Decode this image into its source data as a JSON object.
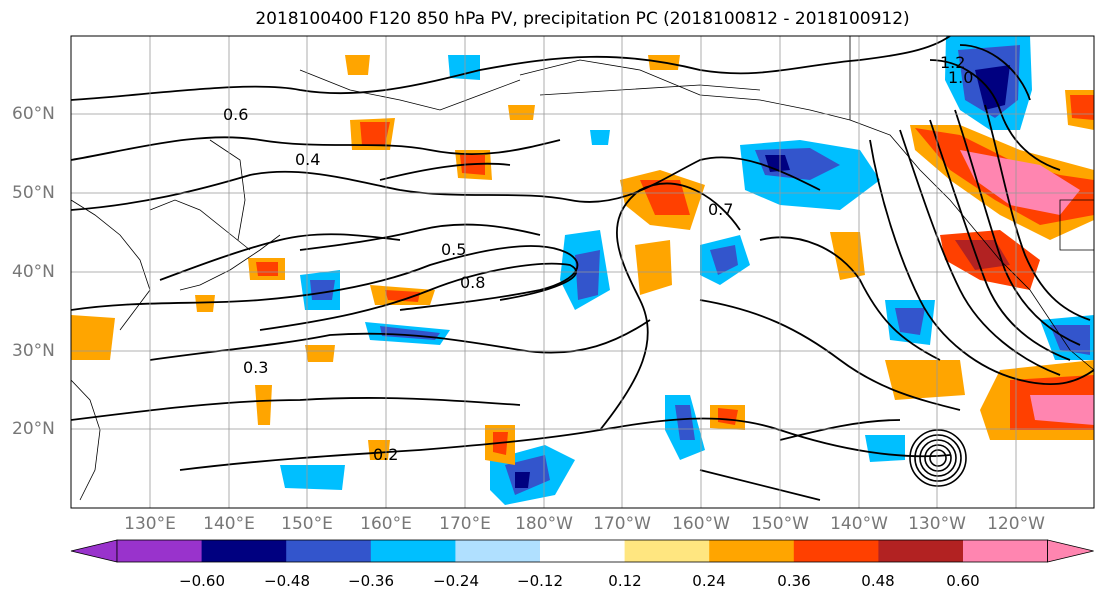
{
  "title": "2018100400 F120 850 hPa PV, precipitation PC (2018100812 - 2018100912)",
  "lat_labels": [
    "60°N",
    "50°N",
    "40°N",
    "30°N",
    "20°N"
  ],
  "lon_labels": [
    "130°E",
    "140°E",
    "150°E",
    "160°E",
    "170°E",
    "180°W",
    "170°W",
    "160°W",
    "150°W",
    "140°W",
    "130°W",
    "120°W"
  ],
  "contour_labels": [
    "0.5",
    "0.4",
    "0.3",
    "0.2",
    "0.6",
    "0.7",
    "0.8",
    "1.0",
    "1.2"
  ],
  "colorbar": {
    "ticks": [
      "−0.60",
      "−0.48",
      "−0.36",
      "−0.24",
      "−0.12",
      "0.12",
      "0.24",
      "0.36",
      "0.48",
      "0.60"
    ],
    "colors": [
      "#9933cc",
      "#000080",
      "#3355cc",
      "#00bfff",
      "#b0e0ff",
      "#ffffff",
      "#ffe680",
      "#ffa500",
      "#ff4000",
      "#b22222",
      "#ff85b0",
      "#ff85b0"
    ]
  }
}
